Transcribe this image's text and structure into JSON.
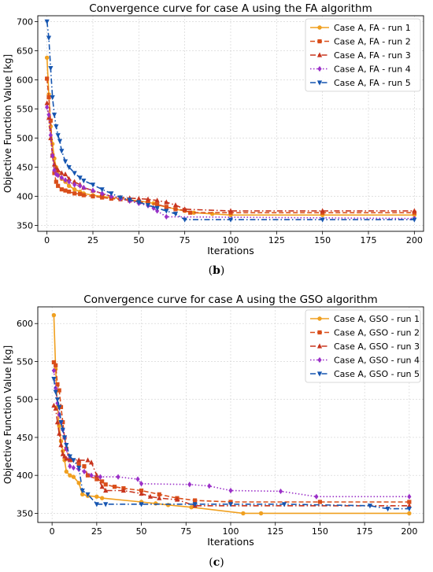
{
  "captions": {
    "b": "b",
    "c": "c"
  },
  "chart_data": [
    {
      "type": "line",
      "title": "Convergence curve for case A using the FA algorithm",
      "xlabel": "Iterations",
      "ylabel": "Objective Function Value [kg]",
      "xlim": [
        -5,
        205
      ],
      "ylim": [
        340,
        710
      ],
      "xticks": [
        0,
        25,
        50,
        75,
        100,
        125,
        150,
        175,
        200
      ],
      "yticks": [
        350,
        400,
        450,
        500,
        550,
        600,
        650,
        700
      ],
      "grid": true,
      "legend": "top-right",
      "series": [
        {
          "name": "Case A, FA - run 1",
          "color": "#f0a020",
          "dash": "solid",
          "marker": "circle",
          "x": [
            0,
            1,
            2,
            3,
            4,
            5,
            6,
            8,
            10,
            12,
            15,
            18,
            20,
            25,
            30,
            35,
            40,
            45,
            50,
            55,
            58,
            60,
            65,
            70,
            75,
            80,
            90,
            100,
            150,
            200
          ],
          "y": [
            638,
            575,
            520,
            490,
            465,
            450,
            438,
            430,
            425,
            418,
            412,
            408,
            405,
            402,
            400,
            398,
            396,
            394,
            392,
            390,
            388,
            385,
            382,
            378,
            375,
            372,
            370,
            368,
            368,
            368
          ]
        },
        {
          "name": "Case A, FA - run 2",
          "color": "#d94e1a",
          "dash": "dashed",
          "marker": "square",
          "x": [
            0,
            1,
            2,
            3,
            4,
            5,
            6,
            8,
            10,
            12,
            15,
            18,
            20,
            25,
            30,
            35,
            40,
            45,
            50,
            55,
            60,
            65,
            70,
            75,
            78,
            100,
            150,
            200
          ],
          "y": [
            602,
            570,
            530,
            470,
            440,
            425,
            418,
            412,
            410,
            408,
            405,
            404,
            402,
            400,
            398,
            396,
            395,
            393,
            391,
            389,
            386,
            382,
            378,
            376,
            372,
            372,
            372,
            372
          ]
        },
        {
          "name": "Case A, FA - run 3",
          "color": "#c8351e",
          "dash": "dashdot",
          "marker": "triangle-up",
          "x": [
            0,
            1,
            2,
            3,
            4,
            5,
            6,
            8,
            10,
            12,
            15,
            18,
            20,
            25,
            30,
            35,
            40,
            45,
            50,
            55,
            60,
            65,
            70,
            75,
            100,
            150,
            200
          ],
          "y": [
            560,
            535,
            500,
            470,
            455,
            448,
            445,
            440,
            438,
            430,
            425,
            420,
            415,
            410,
            405,
            400,
            398,
            397,
            396,
            395,
            393,
            390,
            385,
            378,
            375,
            375,
            375
          ]
        },
        {
          "name": "Case A, FA - run 4",
          "color": "#9b30c8",
          "dash": "dotted",
          "marker": "diamond",
          "x": [
            0,
            1,
            2,
            3,
            4,
            5,
            6,
            8,
            10,
            12,
            15,
            18,
            20,
            25,
            30,
            35,
            40,
            45,
            50,
            55,
            58,
            60,
            65,
            200
          ],
          "y": [
            553,
            540,
            505,
            470,
            445,
            438,
            436,
            432,
            428,
            425,
            420,
            418,
            415,
            410,
            405,
            400,
            396,
            392,
            388,
            384,
            380,
            375,
            365,
            362
          ]
        },
        {
          "name": "Case A, FA - run 5",
          "color": "#1555b0",
          "dash": "dashdot",
          "marker": "triangle-down",
          "x": [
            0,
            1,
            2,
            3,
            4,
            5,
            6,
            7,
            8,
            10,
            12,
            15,
            18,
            20,
            25,
            30,
            35,
            40,
            45,
            50,
            55,
            60,
            65,
            70,
            75,
            100,
            150,
            200
          ],
          "y": [
            700,
            672,
            620,
            570,
            540,
            520,
            505,
            495,
            478,
            460,
            450,
            440,
            432,
            427,
            420,
            412,
            405,
            398,
            394,
            390,
            385,
            380,
            375,
            370,
            360,
            360,
            360,
            360
          ]
        }
      ]
    },
    {
      "type": "line",
      "title": "Convergence curve for case A using the GSO algorithm",
      "xlabel": "Iterations",
      "ylabel": "Objective Function Value [kg]",
      "xlim": [
        -8,
        208
      ],
      "ylim": [
        338,
        622
      ],
      "xticks": [
        0,
        25,
        50,
        75,
        100,
        125,
        150,
        175,
        200
      ],
      "yticks": [
        350,
        400,
        450,
        500,
        550,
        600
      ],
      "grid": true,
      "legend": "top-right",
      "series": [
        {
          "name": "Case A, GSO - run 1",
          "color": "#f0a020",
          "dash": "solid",
          "marker": "circle",
          "x": [
            1,
            2,
            3,
            4,
            5,
            6,
            7,
            8,
            10,
            12,
            15,
            17,
            20,
            25,
            28,
            50,
            58,
            65,
            78,
            107,
            117,
            200
          ],
          "y": [
            611,
            540,
            490,
            465,
            445,
            432,
            420,
            405,
            400,
            398,
            390,
            375,
            373,
            372,
            370,
            365,
            363,
            361,
            358,
            350,
            350,
            350
          ]
        },
        {
          "name": "Case A, GSO - run 2",
          "color": "#d94e1a",
          "dash": "dashed",
          "marker": "square",
          "x": [
            1,
            2,
            3,
            4,
            5,
            6,
            7,
            8,
            10,
            15,
            18,
            20,
            25,
            28,
            30,
            35,
            40,
            50,
            60,
            70,
            80,
            100,
            150,
            200
          ],
          "y": [
            549,
            545,
            520,
            512,
            490,
            470,
            450,
            435,
            420,
            415,
            412,
            400,
            395,
            392,
            388,
            385,
            383,
            380,
            375,
            370,
            367,
            365,
            365,
            365
          ]
        },
        {
          "name": "Case A, GSO - run 3",
          "color": "#c8351e",
          "dash": "dashdot",
          "marker": "triangle-up",
          "x": [
            1,
            2,
            3,
            4,
            5,
            6,
            7,
            8,
            10,
            15,
            20,
            22,
            25,
            28,
            30,
            40,
            50,
            55,
            60,
            70,
            80,
            200
          ],
          "y": [
            492,
            488,
            470,
            455,
            440,
            428,
            425,
            422,
            421,
            420,
            420,
            417,
            400,
            385,
            380,
            380,
            376,
            372,
            370,
            368,
            360,
            360
          ]
        },
        {
          "name": "Case A, GSO - run 4",
          "color": "#9b30c8",
          "dash": "dotted",
          "marker": "diamond",
          "x": [
            1,
            2,
            3,
            4,
            5,
            6,
            7,
            8,
            10,
            12,
            15,
            18,
            22,
            27,
            37,
            48,
            50,
            77,
            88,
            100,
            128,
            148,
            200
          ],
          "y": [
            538,
            515,
            495,
            480,
            470,
            460,
            450,
            435,
            412,
            410,
            408,
            405,
            400,
            398,
            398,
            395,
            389,
            388,
            386,
            380,
            379,
            372,
            372
          ]
        },
        {
          "name": "Case A, GSO - run 5",
          "color": "#1555b0",
          "dash": "dashdot",
          "marker": "triangle-down",
          "x": [
            1,
            2,
            3,
            4,
            5,
            6,
            7,
            8,
            10,
            12,
            15,
            17,
            20,
            25,
            30,
            50,
            80,
            100,
            130,
            178,
            188,
            200
          ],
          "y": [
            527,
            510,
            500,
            490,
            470,
            460,
            450,
            440,
            425,
            420,
            410,
            380,
            375,
            362,
            362,
            362,
            362,
            362,
            362,
            360,
            356,
            356
          ]
        }
      ]
    }
  ]
}
